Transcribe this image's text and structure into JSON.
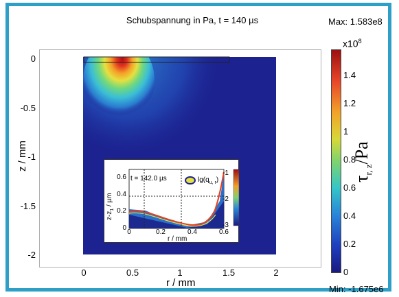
{
  "chart_data": {
    "type": "heatmap",
    "title": "Schubspannung in Pa, t = 140 µs",
    "max_text": "Max: 1.583e8",
    "min_text": "Min: -1.675e6",
    "xlabel": "r / mm",
    "ylabel": "z / mm",
    "x_ticks": [
      "0",
      "0.5",
      "1",
      "1.5",
      "2"
    ],
    "y_ticks": [
      "0",
      "-0.5",
      "-1",
      "-1.5",
      "-2"
    ],
    "xlim": [
      -0.45,
      2.45
    ],
    "ylim": [
      -2.1,
      0.1
    ],
    "domain": {
      "r_range": [
        0,
        2
      ],
      "z_range": [
        -2,
        0
      ]
    },
    "hotspot": {
      "r": 0.37,
      "z": -0.12,
      "value": 158300000.0
    },
    "colorbar": {
      "multiplier": "x10",
      "exponent": "8",
      "label_main": "τ",
      "label_sub": "r, z",
      "label_unit": "/Pa",
      "ticks": [
        "0",
        "0.2",
        "0.4",
        "0.6",
        "0.8",
        "1",
        "1.2",
        "1.4"
      ],
      "range": [
        0,
        1.583
      ],
      "colormap": "jet"
    },
    "inset": {
      "time_label": "t = 142.0 µs",
      "legend": "lg(q",
      "legend_sub": "u, r",
      "legend_end": ")",
      "xlabel": "r / mm",
      "ylabel": "z-z",
      "ylabel_sub": "1",
      "ylabel_unit": " / µm",
      "x_ticks": [
        "0",
        "0.2",
        "0.4",
        "0.6"
      ],
      "y_ticks": [
        "0.6",
        "0.4",
        "0.2",
        "0"
      ],
      "colorbar_ticks": [
        "-1",
        "-2",
        "-3"
      ],
      "xlim": [
        0,
        0.6
      ],
      "ylim": [
        0,
        0.7
      ]
    }
  }
}
